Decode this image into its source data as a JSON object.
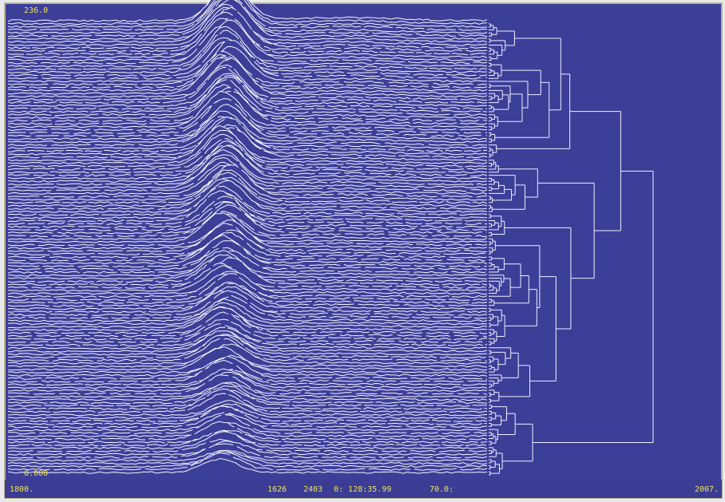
{
  "display": {
    "top_left": "236.0",
    "bottom_left": "0.000"
  },
  "status_bar": [
    "1800.",
    "1626",
    "2403",
    "0: 128:35.99",
    "70.0:",
    "2007."
  ]
}
